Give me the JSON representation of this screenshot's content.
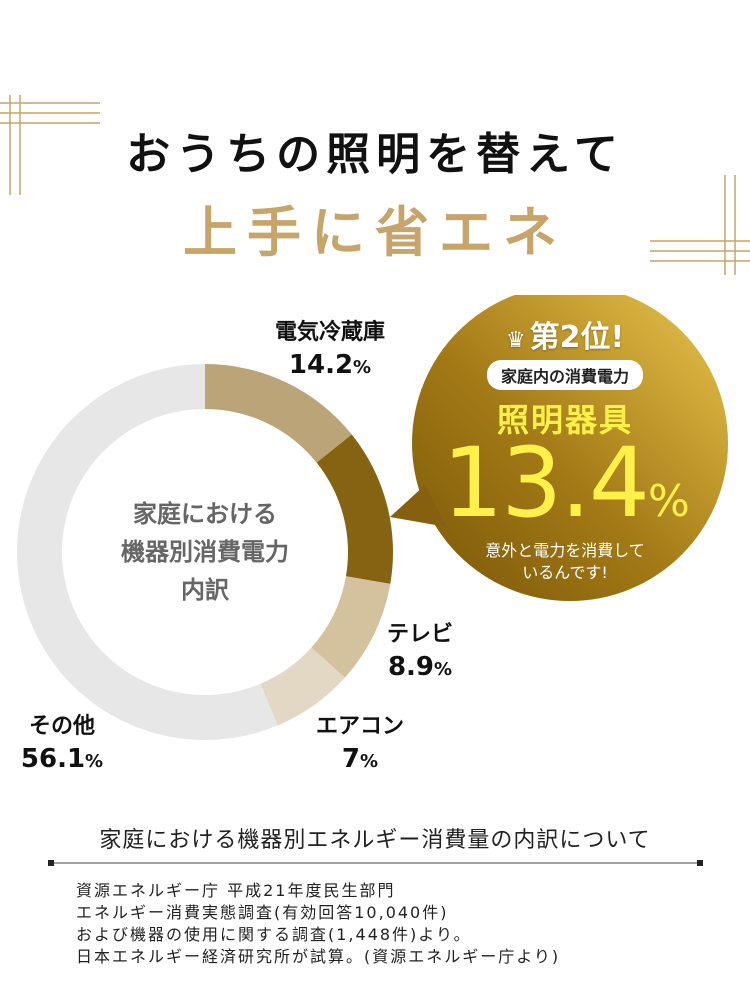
{
  "title": {
    "line1": "おうちの照明を替えて",
    "line2": "上手に省エネ"
  },
  "chart_data": {
    "type": "pie",
    "donut": true,
    "center_label": [
      "家庭における",
      "機器別消費電力",
      "内訳"
    ],
    "unit": "%",
    "slices": [
      {
        "name": "電気冷蔵庫",
        "value": 14.2,
        "display": "14.2",
        "color": "#bba478"
      },
      {
        "name": "照明器具",
        "value": 13.4,
        "display": "13.4",
        "color": "#866213"
      },
      {
        "name": "テレビ",
        "value": 8.9,
        "display": "8.9",
        "color": "#d3c29d"
      },
      {
        "name": "エアコン",
        "value": 7,
        "display": "7",
        "color": "#e3d8c3"
      },
      {
        "name": "その他",
        "value": 56.1,
        "display": "56.1",
        "color": "#e7e7e7"
      }
    ]
  },
  "callout": {
    "rank": "第2位!",
    "subtitle": "家庭内の消費電力",
    "item": "照明器具",
    "value": "13.4",
    "unit": "%",
    "note": [
      "意外と電力を消費して",
      "いるんです!"
    ]
  },
  "colors": {
    "gold": "#c7a46a",
    "highlight_yellow": "#fff14a",
    "callout_dark": "#8a6310",
    "callout_light": "#e8c24a"
  },
  "footer": {
    "title": "家庭における機器別エネルギー消費量の内訳について",
    "source": [
      "資源エネルギー庁 平成21年度民生部門",
      "エネルギー消費実態調査(有効回答10,040件)",
      "および機器の使用に関する調査(1,448件)より。",
      "日本エネルギー経済研究所が試算。(資源エネルギー庁より)"
    ]
  },
  "icons": {
    "crown": "crown-icon"
  }
}
